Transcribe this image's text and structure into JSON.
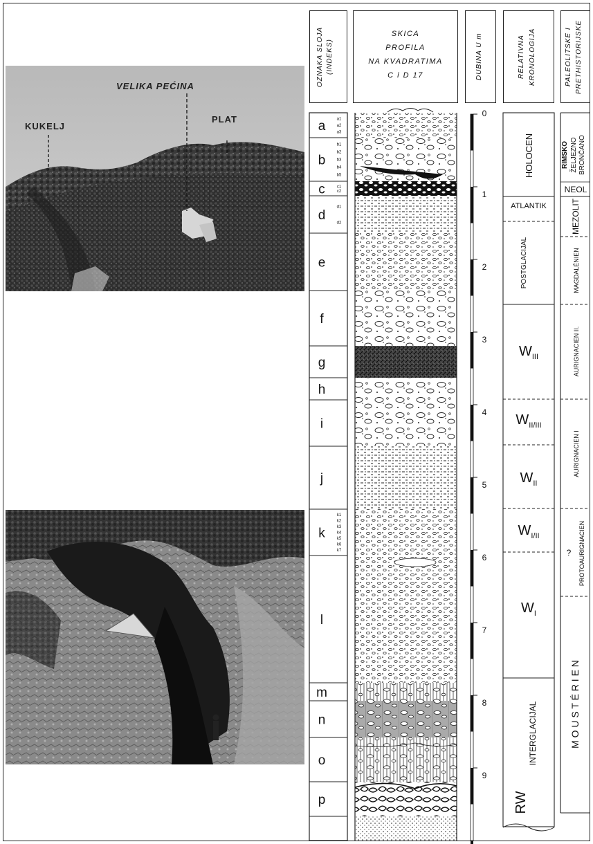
{
  "photo_top": {
    "title_label": "VELIKA PEĆINA",
    "left_label": "KUKELJ",
    "right_label": "PLAT"
  },
  "photo_bottom": {},
  "headers": {
    "layer_index": [
      "OZNAKA SLOJA",
      "(INDEKS)"
    ],
    "sketch": [
      "SKICA",
      "PROFILA",
      "NA KVADRATIMA",
      "C i D 17"
    ],
    "depth": "DUBINA U m",
    "chronology": [
      "RELATIVNA",
      "KRONOLOGIJA"
    ],
    "cultures": [
      "PALEOLITSKE I",
      "PRETHISTORIJSKE"
    ]
  },
  "layers": [
    {
      "label": "a",
      "sub": [
        "a1",
        "a2",
        "a3"
      ]
    },
    {
      "label": "b",
      "sub": [
        "b1",
        "b2",
        "b3",
        "b4",
        "b5"
      ]
    },
    {
      "label": "c",
      "sub": [
        "c1",
        "c2"
      ]
    },
    {
      "label": "d",
      "sub": [
        "d1",
        "d2"
      ]
    },
    {
      "label": "e",
      "sub": []
    },
    {
      "label": "f",
      "sub": []
    },
    {
      "label": "g",
      "sub": []
    },
    {
      "label": "h",
      "sub": []
    },
    {
      "label": "i",
      "sub": []
    },
    {
      "label": "j",
      "sub": []
    },
    {
      "label": "k",
      "sub": [
        "k1",
        "k2",
        "k3",
        "k4",
        "k5",
        "k6",
        "k7"
      ]
    },
    {
      "label": "l",
      "sub": []
    },
    {
      "label": "m",
      "sub": []
    },
    {
      "label": "n",
      "sub": []
    },
    {
      "label": "o",
      "sub": []
    },
    {
      "label": "p",
      "sub": []
    }
  ],
  "depth_ticks": [
    "0",
    "1",
    "2",
    "3",
    "4",
    "5",
    "6",
    "7",
    "8",
    "9"
  ],
  "chronology": {
    "holocen": "HOLOCEN",
    "atlantik": "ATLANTIK",
    "postglacial": "POSTGLACIJAL",
    "w3": "W",
    "w3_sub": "III",
    "w23": "W",
    "w23_sub": "II/III",
    "w2": "W",
    "w2_sub": "II",
    "w12": "W",
    "w12_sub": "I/II",
    "w1": "W",
    "w1_sub": "I",
    "interglacial": "INTERGLACIJAL",
    "rw": "RW"
  },
  "cultures": {
    "rimsko": "RIMSKO",
    "zeljezno": "ŽELJEZNO",
    "broncano": "BRONČANO",
    "neol": "NEOL",
    "mezolit": "MEZOLIT",
    "magdalenien": "MAGDALÉNIEN",
    "aurignacien2": "AURIGNACIEN II.",
    "aurignacien1": "AURIGNACIEN I",
    "protoaurignacien": "PROTOAURIGNACIEN",
    "question": "?",
    "mousterien": "M O U S T É R I E N"
  }
}
